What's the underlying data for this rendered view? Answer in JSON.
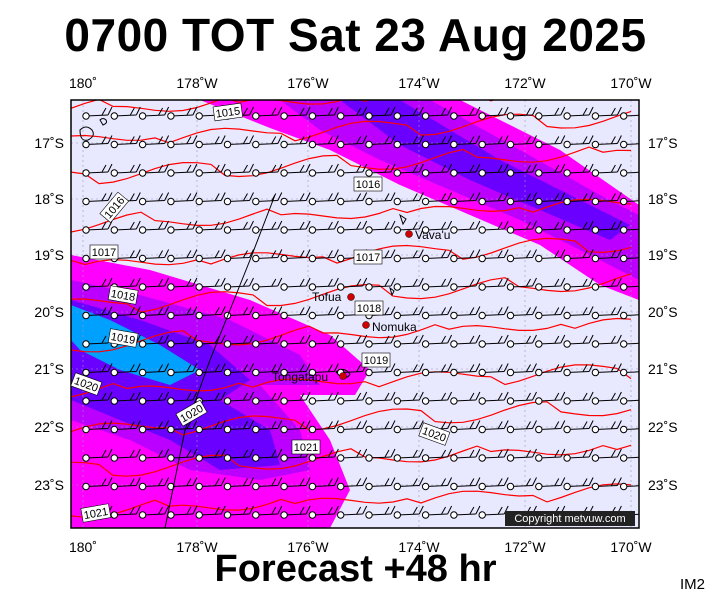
{
  "title": "0700 TOT Sat 23 Aug 2025",
  "footer": "Forecast +48 hr",
  "image_code": "IM2",
  "copyright": "Copyright metvuw.com",
  "colors": {
    "background": "#e8e8ff",
    "isobar": "#ff0000",
    "wind_band_outer": "#ff00ff",
    "wind_band_mid": "#bb00ff",
    "wind_band_inner": "#6a00ff",
    "wind_band_core": "#00a0ff"
  },
  "axes": {
    "lon_labels": [
      "180˚",
      "178˚W",
      "176˚W",
      "174˚W",
      "172˚W",
      "170˚W"
    ],
    "lat_labels": [
      "17˚S",
      "18˚S",
      "19˚S",
      "20˚S",
      "21˚S",
      "22˚S",
      "23˚S"
    ]
  },
  "isobar_labels": [
    "1015",
    "1016",
    "1016",
    "1017",
    "1017",
    "1018",
    "1018",
    "1019",
    "1019",
    "1020",
    "1020",
    "1020",
    "1021",
    "1021"
  ],
  "places": [
    {
      "name": "Vava'u"
    },
    {
      "name": "Tofua"
    },
    {
      "name": "Nomuka"
    },
    {
      "name": "Tongatapu"
    }
  ],
  "legend_icons": [
    "wind-barb-icon",
    "station-circle-icon"
  ]
}
